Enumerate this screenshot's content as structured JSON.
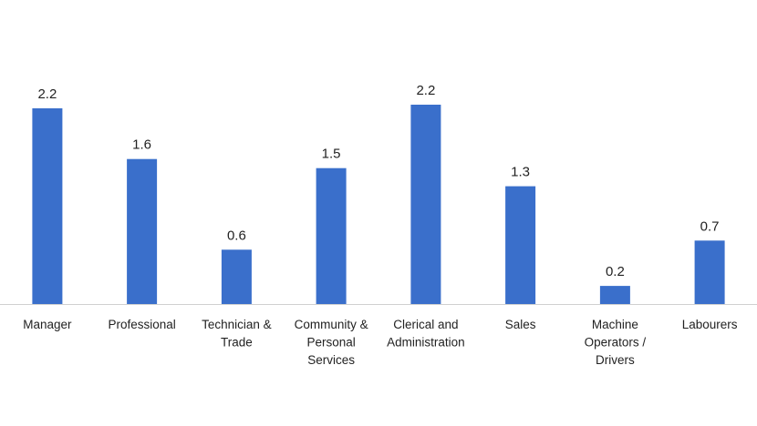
{
  "chart_data": {
    "type": "bar",
    "categories": [
      "Manager",
      "Professional",
      "Technician & Trade",
      "Community & Personal Services",
      "Clerical and Administration",
      "Sales",
      "Machine Operators / Drivers",
      "Labourers"
    ],
    "category_label_lines": [
      [
        "Manager"
      ],
      [
        "Professional"
      ],
      [
        "Technician &",
        "Trade"
      ],
      [
        "Community &",
        "Personal",
        "Services"
      ],
      [
        "Clerical and",
        "Administration"
      ],
      [
        "Sales"
      ],
      [
        "Machine",
        "Operators /",
        "Drivers"
      ],
      [
        "Labourers"
      ]
    ],
    "values": [
      2.2,
      1.6,
      0.6,
      1.5,
      2.2,
      1.3,
      0.2,
      0.7
    ],
    "value_labels": [
      "2.2",
      "1.6",
      "0.6",
      "1.5",
      "2.2",
      "1.3",
      "0.2",
      "0.7"
    ],
    "title": "",
    "xlabel": "",
    "ylabel": "",
    "ylim": [
      0,
      2.2
    ],
    "grid": false,
    "legend": "none",
    "bar_color": "#3a6fcb",
    "axis_color": "#d0d0d0"
  }
}
